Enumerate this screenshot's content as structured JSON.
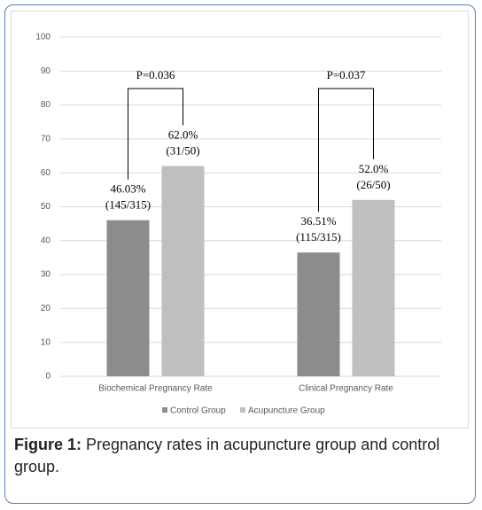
{
  "chart_data": {
    "type": "bar",
    "categories": [
      "Biochemical Pregnancy Rate",
      "Clinical Pregnancy Rate"
    ],
    "series": [
      {
        "name": "Control Group",
        "color": "#8c8c8c",
        "values": [
          46.03,
          36.51
        ],
        "value_labels": [
          "46.03%",
          "36.51%"
        ],
        "counts": [
          "(145/315)",
          "(115/315)"
        ]
      },
      {
        "name": "Acupuncture Group",
        "color": "#bfbfbf",
        "values": [
          62.0,
          52.0
        ],
        "value_labels": [
          "62.0%",
          "52.0%"
        ],
        "counts": [
          "(31/50)",
          "(26/50)"
        ]
      }
    ],
    "annotations": [
      "P=0.036",
      "P=0.037"
    ],
    "ylim": [
      0,
      100
    ],
    "yticks": [
      0,
      10,
      20,
      30,
      40,
      50,
      60,
      70,
      80,
      90,
      100
    ],
    "grid": true,
    "legend": "bottom"
  },
  "caption": {
    "label": "Figure 1:",
    "text": "Pregnancy rates in acupuncture group and control group."
  }
}
